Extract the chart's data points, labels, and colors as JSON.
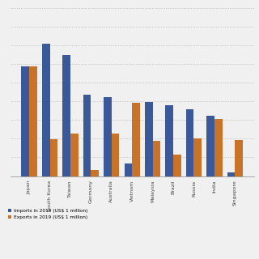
{
  "categories": [
    "Japan",
    "South Korea",
    "Taiwan",
    "Germany",
    "Australia",
    "Vietnam",
    "Malaysia",
    "Brazil",
    "Russia",
    "India",
    "Singapore"
  ],
  "imports": [
    143800,
    173100,
    158400,
    106200,
    103200,
    16700,
    97200,
    92600,
    87800,
    78700,
    5000
  ],
  "exports": [
    143800,
    48700,
    56000,
    8000,
    56000,
    96000,
    46100,
    28000,
    49700,
    74900,
    47000
  ],
  "export_color": "#c8722a",
  "import_color": "#3b5998",
  "background_color": "#f0f0f0",
  "legend_exports": "Exports in 2019 (US$ 1 million)",
  "legend_imports": "Imports in 2019 (US$ 1 million)",
  "ylim": [
    0,
    220000
  ],
  "bar_width": 0.38,
  "figsize": [
    3.2,
    3.2
  ],
  "dpi": 100
}
